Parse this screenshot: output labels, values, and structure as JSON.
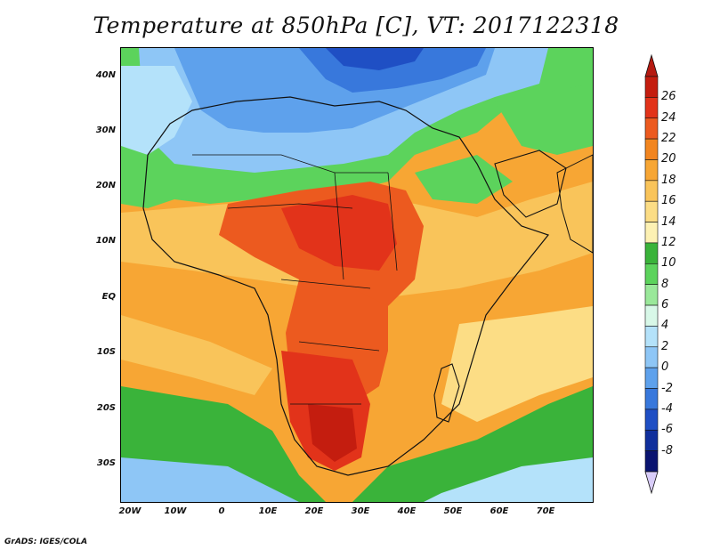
{
  "title": "Temperature at 850hPa [C], VT: 2017122318",
  "credit": "GrADS: IGES/COLA",
  "map": {
    "lat_ticks": [
      "40N",
      "30N",
      "20N",
      "10N",
      "EQ",
      "10S",
      "20S",
      "30S"
    ],
    "lon_ticks": [
      "20W",
      "10W",
      "0",
      "10E",
      "20E",
      "30E",
      "40E",
      "50E",
      "60E",
      "70E"
    ],
    "lat_range": [
      -37,
      45
    ],
    "lon_range": [
      -22,
      80
    ]
  },
  "colorbar": {
    "labels": [
      "26",
      "24",
      "22",
      "20",
      "18",
      "16",
      "14",
      "12",
      "10",
      "8",
      "6",
      "4",
      "2",
      "0",
      "-2",
      "-4",
      "-6",
      "-8"
    ],
    "colors": [
      "#c41d0f",
      "#e2331a",
      "#ec5a1f",
      "#f2851f",
      "#f7a634",
      "#f9c45a",
      "#fcdd85",
      "#fdf1b3",
      "#3ab33a",
      "#5cd35c",
      "#9ae89a",
      "#d8f8e8",
      "#b4e2fa",
      "#8ec6f6",
      "#5ea1ec",
      "#3878dc",
      "#1f4fc4",
      "#102f9c",
      "#0a1470"
    ],
    "over_color": "#b51a11",
    "under_color": "#d8ccf8"
  }
}
